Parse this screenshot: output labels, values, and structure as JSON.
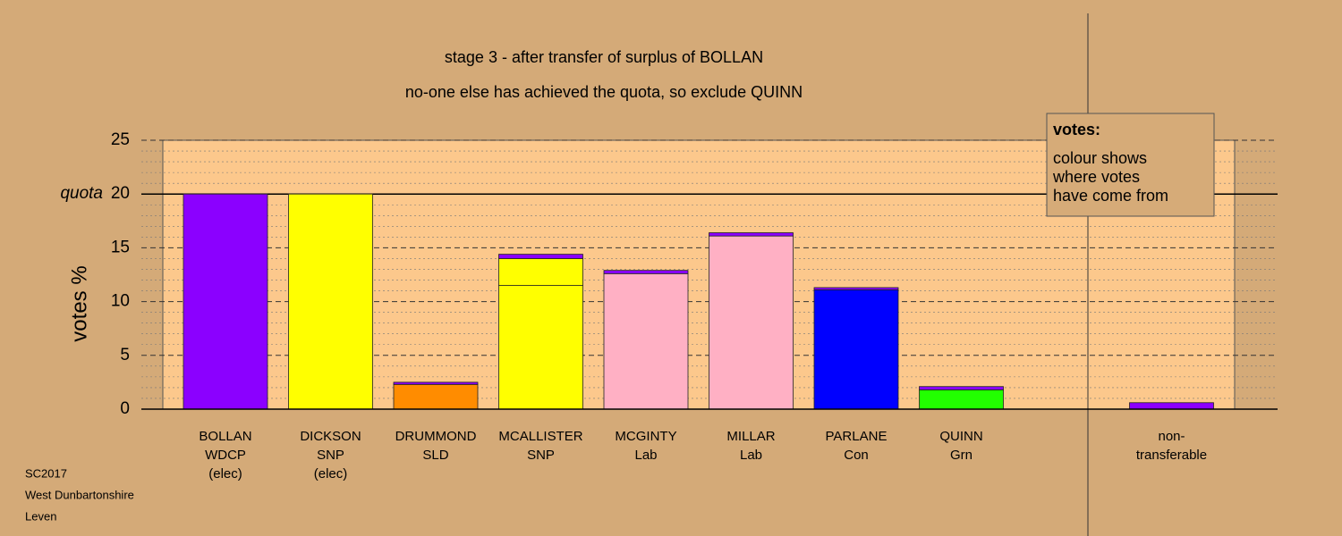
{
  "chart_data": {
    "type": "stacked-bar",
    "title": "stage 3 - after transfer of surplus of BOLLAN",
    "subtitle": "no-one else has achieved the quota, so exclude QUINN",
    "y_label": "votes %",
    "categories": [
      [
        "BOLLAN",
        "WDCP",
        "(elec)"
      ],
      [
        "DICKSON",
        "SNP",
        "(elec)"
      ],
      [
        "DRUMMOND",
        "SLD"
      ],
      [
        "MCALLISTER",
        "SNP"
      ],
      [
        "MCGINTY",
        "Lab"
      ],
      [
        "MILLAR",
        "Lab"
      ],
      [
        "PARLANE",
        "Con"
      ],
      [
        "QUINN",
        "Grn"
      ],
      null,
      [
        "non-",
        "transferable"
      ]
    ],
    "series": [
      {
        "colors": [
          "#8b00ff",
          "#ffff00",
          "#ff8c00",
          "#ffff00",
          "#ffb0c4",
          "#ffb0c4",
          "#0000ff",
          "#22ff00",
          null,
          "#8b00ff"
        ],
        "values": [
          20,
          20,
          2.3,
          11.5,
          12.6,
          16.1,
          11.1,
          1.8,
          null,
          0.6
        ]
      },
      {
        "color": "#ffff00",
        "values": [
          null,
          null,
          null,
          2.5,
          null,
          null,
          null,
          null,
          null,
          null
        ]
      },
      {
        "color": "#8b00ff",
        "values": [
          null,
          null,
          0.2,
          0.4,
          0.3,
          0.3,
          0.2,
          0.3,
          null,
          null
        ]
      }
    ],
    "ylim": [
      0,
      25
    ],
    "yticks": [
      0,
      5,
      10,
      15,
      20,
      25
    ],
    "quota": {
      "value": 20,
      "label": "quota"
    },
    "minor_yticks": [
      1,
      2,
      3,
      4,
      6,
      7,
      8,
      9,
      11,
      12,
      13,
      14,
      16,
      17,
      18,
      19,
      21,
      22,
      23,
      24
    ],
    "grid": true,
    "legend": {
      "title": "votes:",
      "lines": [
        "colour shows",
        "where votes",
        "have come from"
      ]
    },
    "footer": [
      "SC2017",
      "West Dunbartonshire",
      "Leven"
    ]
  }
}
